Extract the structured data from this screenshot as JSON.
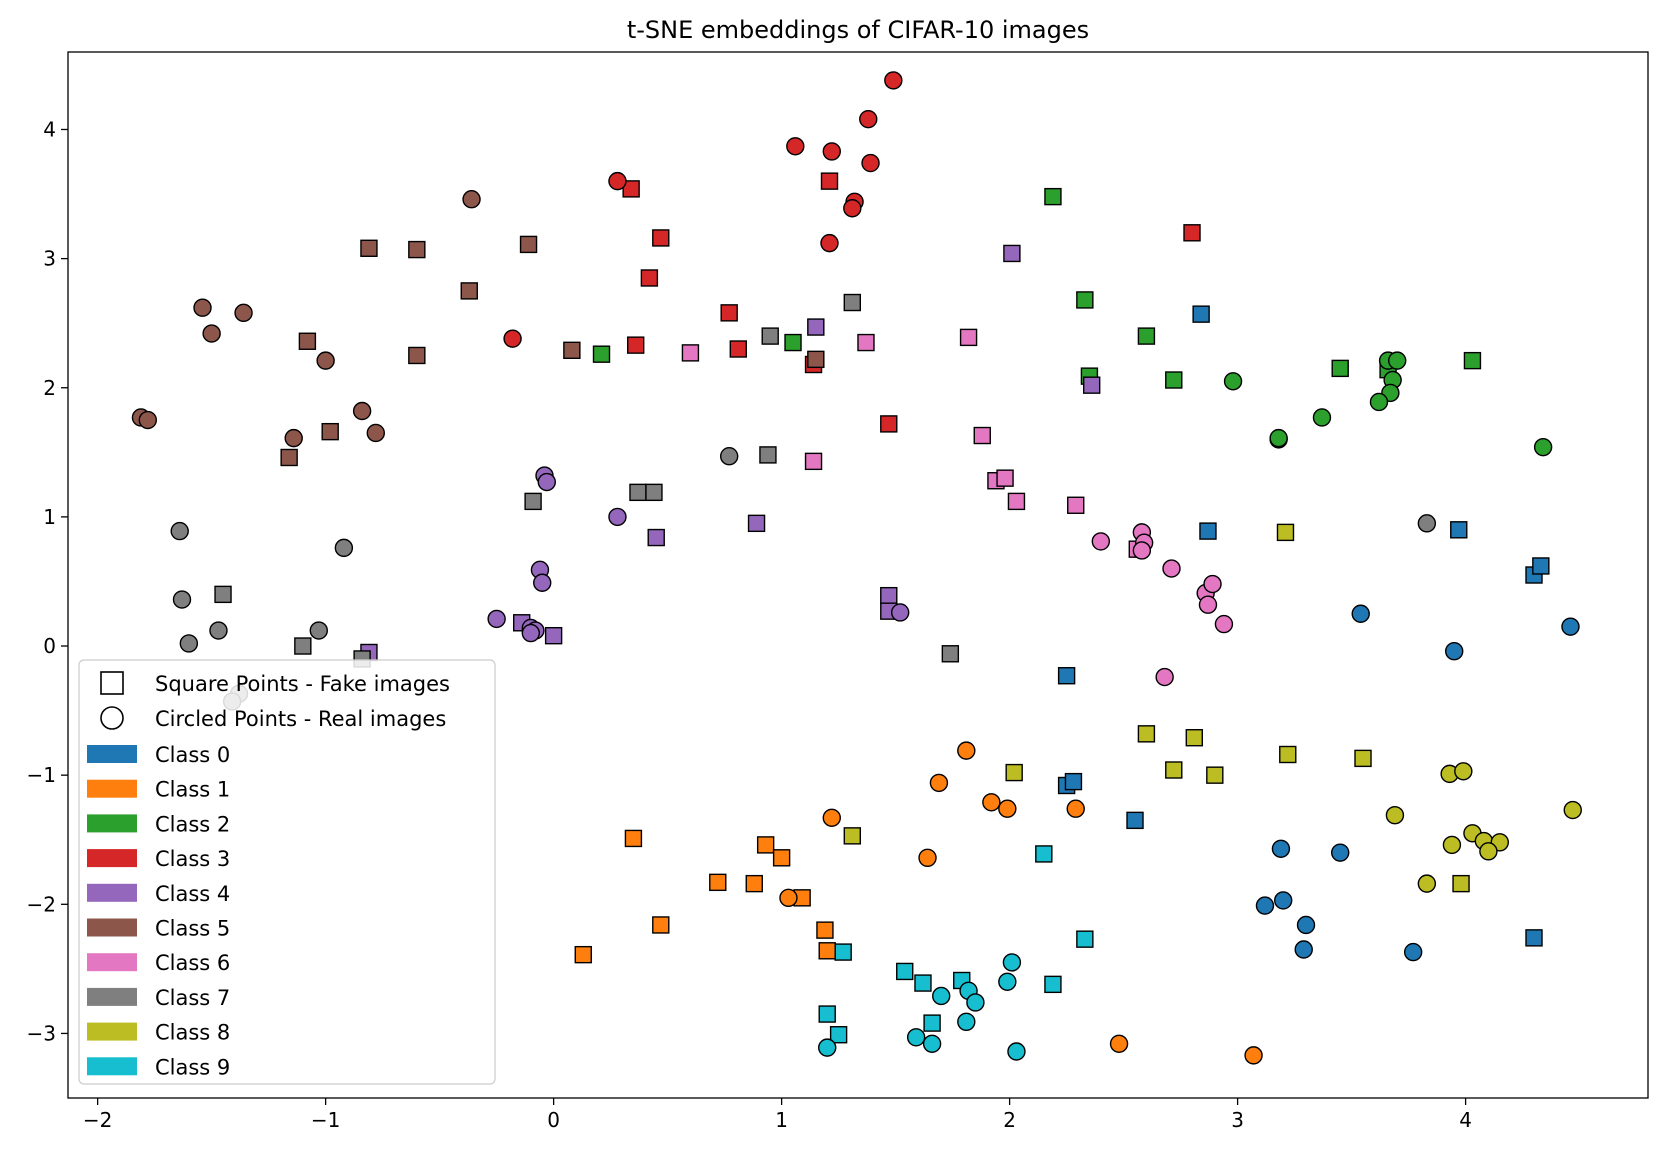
{
  "chart_data": {
    "type": "scatter",
    "title": "t-SNE embeddings of CIFAR-10 images",
    "xlabel": "",
    "ylabel": "",
    "xlim": [
      -2.13,
      4.8
    ],
    "ylim": [
      -3.5,
      4.6
    ],
    "x_ticks": [
      -2,
      -1,
      0,
      1,
      2,
      3,
      4
    ],
    "x_tick_labels": [
      "−2",
      "−1",
      "0",
      "1",
      "2",
      "3",
      "4"
    ],
    "y_ticks": [
      -3,
      -2,
      -1,
      0,
      1,
      2,
      3,
      4
    ],
    "y_tick_labels": [
      "−3",
      "−2",
      "−1",
      "0",
      "1",
      "2",
      "3",
      "4"
    ],
    "grid": false,
    "legend": {
      "placement": "lower-left",
      "marker_entries": [
        {
          "marker": "square",
          "label": "Square Points - Fake images"
        },
        {
          "marker": "circle",
          "label": "Circled Points - Real images"
        }
      ]
    },
    "series": [
      {
        "name": "Class 0",
        "color": "#1f77b4",
        "fake": [
          [
            2.25,
            -0.23
          ],
          [
            2.25,
            -1.08
          ],
          [
            2.28,
            -1.05
          ],
          [
            2.55,
            -1.35
          ],
          [
            2.84,
            2.57
          ],
          [
            2.87,
            0.89
          ],
          [
            3.97,
            0.9
          ],
          [
            4.3,
            0.55
          ],
          [
            4.33,
            0.62
          ],
          [
            4.3,
            -2.26
          ]
        ],
        "real": [
          [
            3.54,
            0.25
          ],
          [
            3.95,
            -0.04
          ],
          [
            4.46,
            0.15
          ],
          [
            3.19,
            -1.57
          ],
          [
            3.45,
            -1.6
          ],
          [
            3.12,
            -2.01
          ],
          [
            3.2,
            -1.97
          ],
          [
            3.3,
            -2.16
          ],
          [
            3.29,
            -2.35
          ],
          [
            3.77,
            -2.37
          ]
        ]
      },
      {
        "name": "Class 1",
        "color": "#ff7f0e",
        "fake": [
          [
            0.35,
            -1.49
          ],
          [
            0.93,
            -1.54
          ],
          [
            1.0,
            -1.64
          ],
          [
            0.72,
            -1.83
          ],
          [
            0.88,
            -1.84
          ],
          [
            1.09,
            -1.95
          ],
          [
            0.47,
            -2.16
          ],
          [
            0.13,
            -2.39
          ],
          [
            1.19,
            -2.2
          ],
          [
            1.2,
            -2.36
          ]
        ],
        "real": [
          [
            1.22,
            -1.33
          ],
          [
            1.81,
            -0.81
          ],
          [
            1.69,
            -1.06
          ],
          [
            1.92,
            -1.21
          ],
          [
            1.99,
            -1.26
          ],
          [
            2.29,
            -1.26
          ],
          [
            1.64,
            -1.64
          ],
          [
            1.03,
            -1.95
          ],
          [
            2.48,
            -3.08
          ],
          [
            3.07,
            -3.17
          ]
        ]
      },
      {
        "name": "Class 2",
        "color": "#2ca02c",
        "fake": [
          [
            2.19,
            3.48
          ],
          [
            2.33,
            2.68
          ],
          [
            2.6,
            2.4
          ],
          [
            2.35,
            2.09
          ],
          [
            2.72,
            2.06
          ],
          [
            3.45,
            2.15
          ],
          [
            3.66,
            2.14
          ],
          [
            4.03,
            2.21
          ],
          [
            0.21,
            2.26
          ],
          [
            1.05,
            2.35
          ]
        ],
        "real": [
          [
            3.66,
            2.21
          ],
          [
            3.7,
            2.21
          ],
          [
            3.68,
            2.06
          ],
          [
            3.67,
            1.96
          ],
          [
            3.62,
            1.89
          ],
          [
            3.37,
            1.77
          ],
          [
            2.98,
            2.05
          ],
          [
            3.18,
            1.6
          ],
          [
            3.18,
            1.61
          ],
          [
            4.34,
            1.54
          ]
        ]
      },
      {
        "name": "Class 3",
        "color": "#d62728",
        "fake": [
          [
            1.21,
            3.6
          ],
          [
            0.34,
            3.54
          ],
          [
            0.47,
            3.16
          ],
          [
            2.8,
            3.2
          ],
          [
            0.42,
            2.85
          ],
          [
            0.77,
            2.58
          ],
          [
            0.36,
            2.33
          ],
          [
            0.81,
            2.3
          ],
          [
            1.14,
            2.18
          ],
          [
            1.47,
            1.72
          ]
        ],
        "real": [
          [
            1.49,
            4.38
          ],
          [
            1.38,
            4.08
          ],
          [
            1.06,
            3.87
          ],
          [
            1.22,
            3.83
          ],
          [
            1.39,
            3.74
          ],
          [
            0.28,
            3.6
          ],
          [
            1.32,
            3.44
          ],
          [
            1.31,
            3.39
          ],
          [
            1.21,
            3.12
          ],
          [
            -0.18,
            2.38
          ]
        ]
      },
      {
        "name": "Class 4",
        "color": "#9467bd",
        "fake": [
          [
            2.01,
            3.04
          ],
          [
            1.15,
            2.47
          ],
          [
            2.36,
            2.02
          ],
          [
            0.89,
            0.95
          ],
          [
            0.45,
            0.84
          ],
          [
            1.47,
            0.39
          ],
          [
            1.47,
            0.27
          ],
          [
            -0.81,
            -0.05
          ],
          [
            -0.14,
            0.18
          ],
          [
            0.0,
            0.08
          ]
        ],
        "real": [
          [
            -0.04,
            1.32
          ],
          [
            -0.03,
            1.27
          ],
          [
            0.28,
            1.0
          ],
          [
            -0.06,
            0.59
          ],
          [
            -0.05,
            0.49
          ],
          [
            -0.25,
            0.21
          ],
          [
            -0.1,
            0.14
          ],
          [
            -0.08,
            0.12
          ],
          [
            -0.1,
            0.1
          ],
          [
            1.52,
            0.26
          ]
        ]
      },
      {
        "name": "Class 5",
        "color": "#8c564b",
        "fake": [
          [
            -0.81,
            3.08
          ],
          [
            -0.6,
            3.07
          ],
          [
            -0.11,
            3.11
          ],
          [
            -0.37,
            2.75
          ],
          [
            -1.08,
            2.36
          ],
          [
            -0.6,
            2.25
          ],
          [
            0.08,
            2.29
          ],
          [
            1.15,
            2.22
          ],
          [
            -0.98,
            1.66
          ],
          [
            -1.16,
            1.46
          ]
        ],
        "real": [
          [
            -0.36,
            3.46
          ],
          [
            -1.54,
            2.62
          ],
          [
            -1.5,
            2.42
          ],
          [
            -1.36,
            2.58
          ],
          [
            -1.0,
            2.21
          ],
          [
            -1.81,
            1.77
          ],
          [
            -1.78,
            1.75
          ],
          [
            -0.84,
            1.82
          ],
          [
            -0.78,
            1.65
          ],
          [
            -1.14,
            1.61
          ]
        ]
      },
      {
        "name": "Class 6",
        "color": "#e377c2",
        "fake": [
          [
            0.6,
            2.27
          ],
          [
            1.37,
            2.35
          ],
          [
            1.82,
            2.39
          ],
          [
            1.88,
            1.63
          ],
          [
            1.14,
            1.43
          ],
          [
            1.94,
            1.28
          ],
          [
            1.98,
            1.3
          ],
          [
            2.03,
            1.12
          ],
          [
            2.29,
            1.09
          ],
          [
            2.56,
            0.75
          ]
        ],
        "real": [
          [
            2.4,
            0.81
          ],
          [
            2.58,
            0.88
          ],
          [
            2.59,
            0.8
          ],
          [
            2.58,
            0.74
          ],
          [
            2.71,
            0.6
          ],
          [
            2.86,
            0.41
          ],
          [
            2.89,
            0.48
          ],
          [
            2.87,
            0.32
          ],
          [
            2.94,
            0.17
          ],
          [
            2.68,
            -0.24
          ]
        ]
      },
      {
        "name": "Class 7",
        "color": "#7f7f7f",
        "fake": [
          [
            1.31,
            2.66
          ],
          [
            0.95,
            2.4
          ],
          [
            0.94,
            1.48
          ],
          [
            0.37,
            1.19
          ],
          [
            0.44,
            1.19
          ],
          [
            -0.09,
            1.12
          ],
          [
            -1.45,
            0.4
          ],
          [
            -1.1,
            0.0
          ],
          [
            -0.84,
            -0.1
          ],
          [
            1.74,
            -0.06
          ]
        ],
        "real": [
          [
            0.77,
            1.47
          ],
          [
            -1.64,
            0.89
          ],
          [
            -0.92,
            0.76
          ],
          [
            -1.63,
            0.36
          ],
          [
            -1.6,
            0.02
          ],
          [
            -1.47,
            0.12
          ],
          [
            -1.03,
            0.12
          ],
          [
            -1.38,
            -0.37
          ],
          [
            -1.41,
            -0.43
          ],
          [
            3.83,
            0.95
          ]
        ]
      },
      {
        "name": "Class 8",
        "color": "#bcbd22",
        "fake": [
          [
            3.21,
            0.88
          ],
          [
            2.6,
            -0.68
          ],
          [
            2.81,
            -0.71
          ],
          [
            3.22,
            -0.84
          ],
          [
            3.55,
            -0.87
          ],
          [
            2.02,
            -0.98
          ],
          [
            2.72,
            -0.96
          ],
          [
            2.9,
            -1.0
          ],
          [
            1.31,
            -1.47
          ],
          [
            3.98,
            -1.84
          ]
        ],
        "real": [
          [
            3.93,
            -0.99
          ],
          [
            3.99,
            -0.97
          ],
          [
            4.47,
            -1.27
          ],
          [
            3.69,
            -1.31
          ],
          [
            4.03,
            -1.45
          ],
          [
            4.08,
            -1.51
          ],
          [
            4.15,
            -1.52
          ],
          [
            3.94,
            -1.54
          ],
          [
            4.1,
            -1.59
          ],
          [
            3.83,
            -1.84
          ]
        ]
      },
      {
        "name": "Class 9",
        "color": "#17becf",
        "fake": [
          [
            2.15,
            -1.61
          ],
          [
            2.33,
            -2.27
          ],
          [
            1.27,
            -2.37
          ],
          [
            1.54,
            -2.52
          ],
          [
            1.62,
            -2.61
          ],
          [
            1.79,
            -2.59
          ],
          [
            2.19,
            -2.62
          ],
          [
            1.2,
            -2.85
          ],
          [
            1.66,
            -2.92
          ],
          [
            1.25,
            -3.01
          ]
        ],
        "real": [
          [
            2.01,
            -2.45
          ],
          [
            1.99,
            -2.6
          ],
          [
            1.82,
            -2.67
          ],
          [
            1.7,
            -2.71
          ],
          [
            1.85,
            -2.76
          ],
          [
            1.81,
            -2.91
          ],
          [
            1.59,
            -3.03
          ],
          [
            1.66,
            -3.08
          ],
          [
            1.2,
            -3.11
          ],
          [
            2.03,
            -3.14
          ]
        ]
      }
    ]
  }
}
